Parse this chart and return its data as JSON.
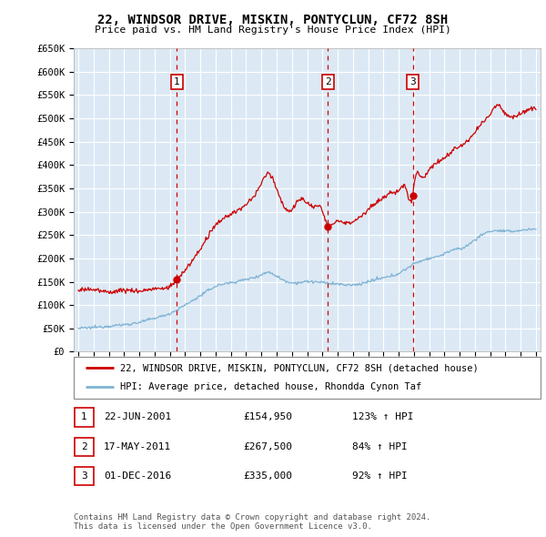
{
  "title": "22, WINDSOR DRIVE, MISKIN, PONTYCLUN, CF72 8SH",
  "subtitle": "Price paid vs. HM Land Registry's House Price Index (HPI)",
  "ylim": [
    0,
    650000
  ],
  "yticks": [
    0,
    50000,
    100000,
    150000,
    200000,
    250000,
    300000,
    350000,
    400000,
    450000,
    500000,
    550000,
    600000,
    650000
  ],
  "ytick_labels": [
    "£0",
    "£50K",
    "£100K",
    "£150K",
    "£200K",
    "£250K",
    "£300K",
    "£350K",
    "£400K",
    "£450K",
    "£500K",
    "£550K",
    "£600K",
    "£650K"
  ],
  "plot_bg_color": "#dce9f5",
  "sale_color": "#cc0000",
  "hpi_color": "#7fb3d3",
  "sales": [
    {
      "date_num": 2001.47,
      "price": 154950,
      "label": "1"
    },
    {
      "date_num": 2011.37,
      "price": 267500,
      "label": "2"
    },
    {
      "date_num": 2016.92,
      "price": 335000,
      "label": "3"
    }
  ],
  "table_rows": [
    {
      "num": "1",
      "date": "22-JUN-2001",
      "price": "£154,950",
      "hpi": "123% ↑ HPI"
    },
    {
      "num": "2",
      "date": "17-MAY-2011",
      "price": "£267,500",
      "hpi": "84% ↑ HPI"
    },
    {
      "num": "3",
      "date": "01-DEC-2016",
      "price": "£335,000",
      "hpi": "92% ↑ HPI"
    }
  ],
  "legend_line1": "22, WINDSOR DRIVE, MISKIN, PONTYCLUN, CF72 8SH (detached house)",
  "legend_line2": "HPI: Average price, detached house, Rhondda Cynon Taf",
  "footer": "Contains HM Land Registry data © Crown copyright and database right 2024.\nThis data is licensed under the Open Government Licence v3.0.",
  "hpi_keypoints": [
    [
      1995.0,
      50000
    ],
    [
      1996.0,
      52000
    ],
    [
      1997.0,
      55000
    ],
    [
      1998.0,
      58000
    ],
    [
      1999.0,
      63000
    ],
    [
      2000.0,
      72000
    ],
    [
      2001.0,
      82000
    ],
    [
      2002.0,
      100000
    ],
    [
      2003.0,
      120000
    ],
    [
      2004.0,
      140000
    ],
    [
      2005.0,
      148000
    ],
    [
      2006.0,
      155000
    ],
    [
      2007.0,
      165000
    ],
    [
      2007.5,
      170000
    ],
    [
      2008.0,
      162000
    ],
    [
      2009.0,
      148000
    ],
    [
      2010.0,
      150000
    ],
    [
      2011.0,
      148000
    ],
    [
      2012.0,
      145000
    ],
    [
      2013.0,
      143000
    ],
    [
      2014.0,
      150000
    ],
    [
      2015.0,
      158000
    ],
    [
      2016.0,
      168000
    ],
    [
      2017.0,
      188000
    ],
    [
      2018.0,
      200000
    ],
    [
      2019.0,
      210000
    ],
    [
      2019.5,
      218000
    ],
    [
      2020.0,
      220000
    ],
    [
      2021.0,
      240000
    ],
    [
      2022.0,
      258000
    ],
    [
      2023.0,
      258000
    ],
    [
      2024.0,
      260000
    ],
    [
      2025.0,
      263000
    ]
  ],
  "red_keypoints": [
    [
      1995.0,
      130000
    ],
    [
      1996.0,
      133000
    ],
    [
      1997.0,
      128000
    ],
    [
      1998.0,
      132000
    ],
    [
      1999.0,
      130000
    ],
    [
      2000.0,
      135000
    ],
    [
      2001.0,
      140000
    ],
    [
      2001.47,
      154950
    ],
    [
      2002.0,
      175000
    ],
    [
      2003.0,
      220000
    ],
    [
      2004.0,
      270000
    ],
    [
      2005.0,
      295000
    ],
    [
      2006.0,
      315000
    ],
    [
      2007.0,
      360000
    ],
    [
      2007.5,
      382000
    ],
    [
      2008.0,
      350000
    ],
    [
      2008.5,
      310000
    ],
    [
      2009.0,
      305000
    ],
    [
      2009.5,
      325000
    ],
    [
      2010.0,
      320000
    ],
    [
      2010.5,
      310000
    ],
    [
      2011.0,
      302000
    ],
    [
      2011.37,
      267500
    ],
    [
      2011.5,
      270000
    ],
    [
      2012.0,
      280000
    ],
    [
      2012.5,
      275000
    ],
    [
      2013.0,
      280000
    ],
    [
      2013.5,
      290000
    ],
    [
      2014.0,
      305000
    ],
    [
      2014.5,
      318000
    ],
    [
      2015.0,
      330000
    ],
    [
      2015.5,
      340000
    ],
    [
      2016.0,
      345000
    ],
    [
      2016.5,
      348000
    ],
    [
      2016.92,
      335000
    ],
    [
      2017.0,
      358000
    ],
    [
      2017.5,
      375000
    ],
    [
      2018.0,
      390000
    ],
    [
      2018.5,
      405000
    ],
    [
      2019.0,
      415000
    ],
    [
      2019.5,
      430000
    ],
    [
      2020.0,
      440000
    ],
    [
      2020.5,
      450000
    ],
    [
      2021.0,
      470000
    ],
    [
      2021.5,
      490000
    ],
    [
      2022.0,
      510000
    ],
    [
      2022.5,
      530000
    ],
    [
      2023.0,
      510000
    ],
    [
      2023.5,
      505000
    ],
    [
      2024.0,
      510000
    ],
    [
      2024.5,
      520000
    ],
    [
      2025.0,
      518000
    ]
  ]
}
